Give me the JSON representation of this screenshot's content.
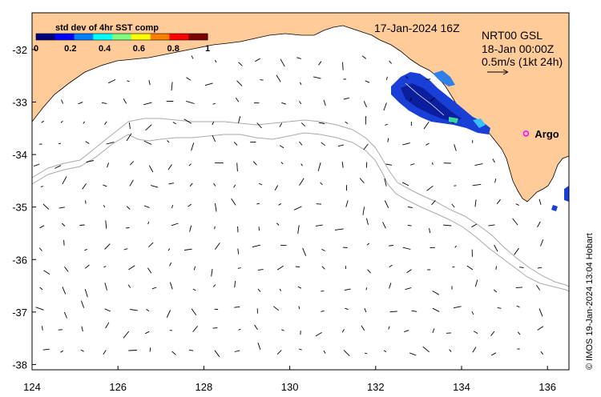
{
  "map": {
    "colorbar": {
      "title": "std dev of 4hr SST comp",
      "ticks": [
        "0",
        "0.2",
        "0.4",
        "0.6",
        "0.8",
        "1"
      ],
      "colors": [
        "#00007f",
        "#0000ff",
        "#007fff",
        "#00ffff",
        "#7fff7f",
        "#ffff00",
        "#ff7f00",
        "#ff0000",
        "#7f0000"
      ]
    },
    "date_label": "17-Jan-2024 16Z",
    "product_label": "NRT00 GSL",
    "valid_label": "18-Jan 00:00Z",
    "scale_label": "0.5m/s (1kt 24h)",
    "station": {
      "label": "Argo",
      "lon": 135.5,
      "lat": -33.6
    },
    "credit": "© IMOS 19-Jan-2024 13:04 Hobart",
    "axes": {
      "x_ticks": [
        "124",
        "126",
        "128",
        "130",
        "132",
        "134",
        "136"
      ],
      "x_values": [
        124,
        126,
        128,
        130,
        132,
        134,
        136
      ],
      "y_ticks": [
        "-32",
        "-33",
        "-34",
        "-35",
        "-36",
        "-37",
        "-38"
      ],
      "y_values": [
        -32,
        -33,
        -34,
        -35,
        -36,
        -37,
        -38
      ],
      "xlim": [
        124,
        136.5
      ],
      "ylim": [
        -38.1,
        -31.3
      ]
    },
    "colors": {
      "land": "#ffcc99",
      "ocean": "#ffffff",
      "bathymetry": "#aaaaaa",
      "station_marker": "#ff00ff",
      "sst_patch": "#1a3fd6"
    }
  }
}
